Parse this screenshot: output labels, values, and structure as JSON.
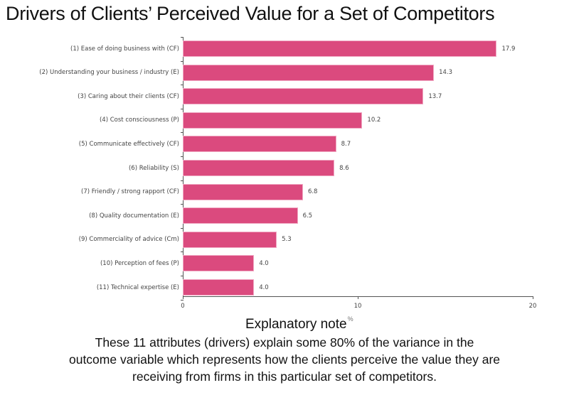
{
  "title": "Drivers of Clients’  Perceived Value for a Set of Competitors",
  "xaxis": {
    "label": "Explanatory note",
    "unit_sup": "%",
    "ticks": [
      "0",
      "10",
      "20"
    ]
  },
  "note": {
    "lines": [
      "These 11 attributes (drivers) explain some 80% of the variance in the",
      "outcome variable which represents how the clients perceive the value they are",
      "receiving from firms in this particular set of competitors."
    ]
  },
  "colors": {
    "bar": "#db4a7e",
    "bar_edge": "#f0a9c3",
    "axis": "#555555"
  },
  "chart_data": {
    "type": "bar",
    "orientation": "horizontal",
    "title": "Drivers of Clients’ Perceived Value for a Set of Competitors",
    "xlabel": "Explanatory note %",
    "ylabel": "",
    "xlim": [
      0,
      20
    ],
    "xticks": [
      0,
      10,
      20
    ],
    "grid": false,
    "legend": null,
    "categories": [
      "(1) Ease of doing business with (CF)",
      "(2) Understanding your business / industry (E)",
      "(3) Caring about their clients (CF)",
      "(4) Cost consciousness (P)",
      "(5) Communicate effectively (CF)",
      "(6) Reliability (S)",
      "(7) Friendly / strong rapport (CF)",
      "(8) Quality documentation (E)",
      "(9) Commerciality of advice (Cm)",
      "(10) Perception of fees (P)",
      "(11) Technical expertise (E)"
    ],
    "values": [
      17.9,
      14.3,
      13.7,
      10.2,
      8.7,
      8.6,
      6.8,
      6.5,
      5.3,
      4.0,
      4.0
    ],
    "value_labels": [
      "17.9",
      "14.3",
      "13.7",
      "10.2",
      "8.7",
      "8.6",
      "6.8",
      "6.5",
      "5.3",
      "4.0",
      "4.0"
    ]
  }
}
